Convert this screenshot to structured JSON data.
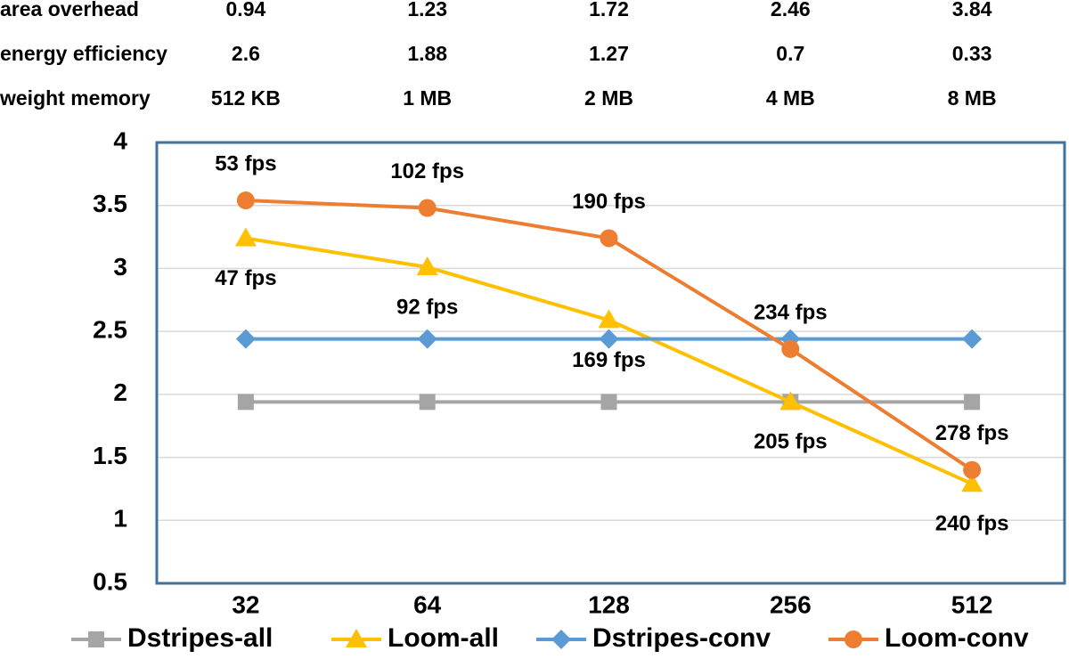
{
  "chart_data": {
    "type": "line",
    "table": {
      "rows": [
        {
          "label": "area overhead",
          "cells": [
            0.94,
            1.23,
            1.72,
            2.46,
            3.84
          ]
        },
        {
          "label": "energy efficiency",
          "cells": [
            2.6,
            1.88,
            1.27,
            0.7,
            0.33
          ]
        },
        {
          "label": "weight memory",
          "cells": [
            "512 KB",
            "1 MB",
            "2 MB",
            "4 MB",
            "8 MB"
          ]
        }
      ]
    },
    "categories": [
      "32",
      "64",
      "128",
      "256",
      "512"
    ],
    "series": [
      {
        "name": "Dstripes-all",
        "color": "#a5a5a5",
        "marker": "square",
        "values": [
          1.94,
          1.94,
          1.94,
          1.94,
          1.94
        ]
      },
      {
        "name": "Loom-all",
        "color": "#ffc000",
        "marker": "triangle",
        "values": [
          3.24,
          3.01,
          2.59,
          1.94,
          1.29
        ],
        "point_labels": [
          "47 fps",
          "92 fps",
          "169 fps",
          "205 fps",
          "240 fps"
        ],
        "label_side": "below"
      },
      {
        "name": "Dstripes-conv",
        "color": "#5b9bd5",
        "marker": "diamond",
        "values": [
          2.44,
          2.44,
          2.44,
          2.44,
          2.44
        ]
      },
      {
        "name": "Loom-conv",
        "color": "#ed7d31",
        "marker": "circle",
        "values": [
          3.54,
          3.48,
          3.24,
          2.36,
          1.4
        ],
        "point_labels": [
          "53 fps",
          "102 fps",
          "190 fps",
          "234 fps",
          "278 fps"
        ],
        "label_side": "above"
      }
    ],
    "ylim": [
      0.5,
      4
    ],
    "yticks": [
      0.5,
      1,
      1.5,
      2,
      2.5,
      3,
      3.5,
      4
    ],
    "grid": true,
    "legend": "bottom"
  }
}
